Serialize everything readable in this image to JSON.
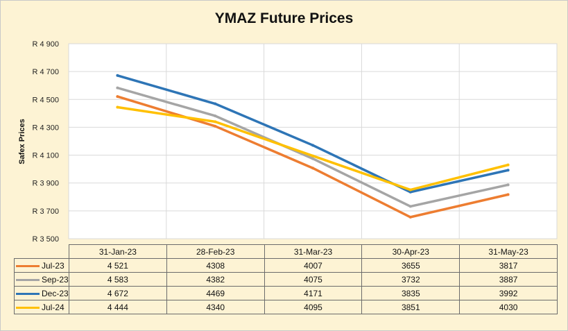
{
  "chart_data": {
    "type": "line",
    "title": "YMAZ Future Prices",
    "xlabel": "",
    "ylabel": "Safex Prices",
    "categories": [
      "31-Jan-23",
      "28-Feb-23",
      "31-Mar-23",
      "30-Apr-23",
      "31-May-23"
    ],
    "ylim": [
      3500,
      4900
    ],
    "yticks": [
      3500,
      3700,
      3900,
      4100,
      4300,
      4500,
      4700,
      4900
    ],
    "ytick_labels": [
      "R 3 500",
      "R 3 700",
      "R 3 900",
      "R 4 100",
      "R 4 300",
      "R 4 500",
      "R 4 700",
      "R 4 900"
    ],
    "grid": true,
    "series": [
      {
        "name": "Jul-23",
        "color": "#ed7d31",
        "values": [
          4521,
          4308,
          4007,
          3655,
          3817
        ],
        "labels": [
          "4 521",
          "4308",
          "4007",
          "3655",
          "3817"
        ]
      },
      {
        "name": "Sep-23",
        "color": "#a5a5a5",
        "values": [
          4583,
          4382,
          4075,
          3732,
          3887
        ],
        "labels": [
          "4 583",
          "4382",
          "4075",
          "3732",
          "3887"
        ]
      },
      {
        "name": "Dec-23",
        "color": "#2e75b6",
        "values": [
          4672,
          4469,
          4171,
          3835,
          3992
        ],
        "labels": [
          "4 672",
          "4469",
          "4171",
          "3835",
          "3992"
        ]
      },
      {
        "name": "Jul-24",
        "color": "#ffc000",
        "values": [
          4444,
          4340,
          4095,
          3851,
          4030
        ],
        "labels": [
          "4 444",
          "4340",
          "4095",
          "3851",
          "4030"
        ]
      }
    ]
  },
  "colors": {
    "background": "#fdf3d4",
    "plot_background": "#ffffff",
    "gridline": "#d9d9d9"
  }
}
